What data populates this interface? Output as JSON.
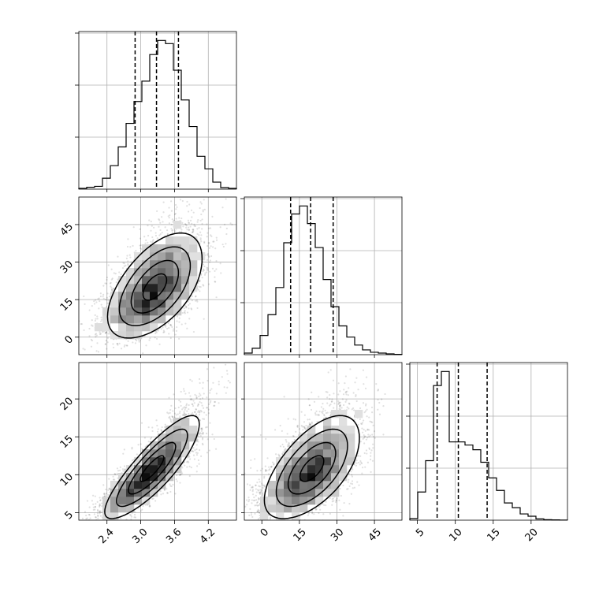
{
  "chart_data": {
    "type": "corner",
    "variables": [
      "",
      "",
      ""
    ],
    "ranges": [
      [
        1.9,
        4.7
      ],
      [
        -7,
        56
      ],
      [
        4.0,
        24.8
      ]
    ],
    "ticks": [
      {
        "values": [
          2.4,
          3.0,
          3.6,
          4.2
        ],
        "labels": [
          "2.4",
          "3.0",
          "3.6",
          "4.2"
        ]
      },
      {
        "values": [
          0,
          15,
          30,
          45
        ],
        "labels": [
          "0",
          "15",
          "30",
          "45"
        ]
      },
      {
        "values": [
          5,
          10,
          15,
          20
        ],
        "labels": [
          "5",
          "10",
          "15",
          "20"
        ]
      }
    ],
    "quantiles": [
      [
        2.9,
        3.28,
        3.67
      ],
      [
        11.5,
        19.5,
        28.5
      ],
      [
        7.6,
        10.4,
        14.2
      ]
    ],
    "histograms": [
      {
        "edges_start": 1.9,
        "bin_width": 0.14,
        "counts": [
          5,
          12,
          18,
          70,
          150,
          270,
          420,
          560,
          690,
          860,
          950,
          930,
          760,
          570,
          400,
          210,
          130,
          45,
          10,
          5
        ]
      },
      {
        "edges_start": -7,
        "bin_width": 3.15,
        "counts": [
          10,
          40,
          120,
          250,
          420,
          700,
          880,
          930,
          820,
          670,
          470,
          300,
          180,
          110,
          60,
          30,
          15,
          10,
          5,
          2
        ]
      },
      {
        "edges_start": 4.0,
        "bin_width": 1.04,
        "counts": [
          10,
          180,
          380,
          860,
          950,
          500,
          500,
          480,
          450,
          370,
          270,
          190,
          110,
          80,
          40,
          25,
          8,
          3,
          2,
          1
        ]
      }
    ],
    "pairs": [
      {
        "x": 0,
        "y": 1,
        "mean": [
          3.25,
          20.0
        ],
        "sd": [
          0.42,
          10.5
        ],
        "rho": 0.55,
        "contour_levels": [
          0.5,
          1.0,
          1.5,
          2.0
        ]
      },
      {
        "x": 0,
        "y": 2,
        "mean": [
          3.2,
          10.8
        ],
        "sd": [
          0.42,
          3.4
        ],
        "rho": 0.85,
        "contour_levels": [
          0.5,
          1.0,
          1.5,
          2.0
        ]
      },
      {
        "x": 1,
        "y": 2,
        "mean": [
          20.0,
          10.8
        ],
        "sd": [
          9.5,
          3.4
        ],
        "rho": 0.6,
        "contour_levels": [
          0.5,
          1.0,
          1.5,
          2.0
        ]
      }
    ],
    "grid": true
  }
}
